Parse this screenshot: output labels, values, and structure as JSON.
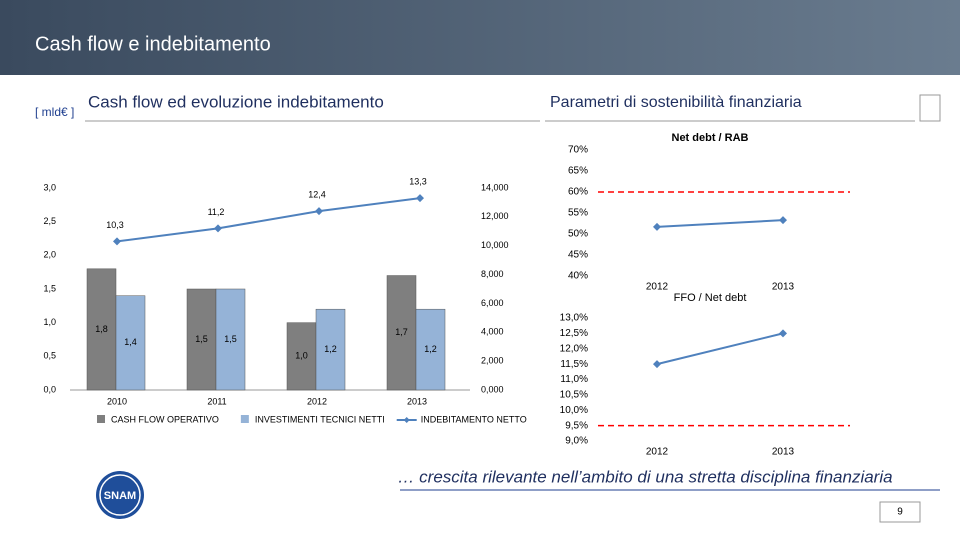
{
  "header": {
    "title": "Cash flow e indebitamento"
  },
  "footer": {
    "tagline": "… crescita rilevante nell’ambito di una stretta disciplina finanziaria",
    "logo": "SNAM",
    "page": "9"
  },
  "chart_data": [
    {
      "type": "bar",
      "unit": "[ mld€ ]",
      "title": "Cash flow ed evoluzione indebitamento",
      "categories": [
        "2010",
        "2011",
        "2012",
        "2013"
      ],
      "series": [
        {
          "name": "CASH FLOW OPERATIVO",
          "color": "#7f7f7f",
          "values": [
            1.8,
            1.5,
            1.0,
            1.7
          ],
          "value_labels": [
            "1,8",
            "1,5",
            "1,0",
            "1,7"
          ]
        },
        {
          "name": "INVESTIMENTI TECNICI NETTI",
          "color": "#95b3d7",
          "values": [
            1.4,
            1.5,
            1.2,
            1.2
          ],
          "value_labels": [
            "1,4",
            "1,5",
            "1,2",
            "1,2"
          ]
        },
        {
          "name": "INDEBITAMENTO NETTO",
          "type": "line",
          "axis": "y2",
          "color": "#4f81bd",
          "values": [
            10.3,
            11.2,
            12.4,
            13.3
          ],
          "value_labels": [
            "10,3",
            "11,2",
            "12,4",
            "13,3"
          ]
        }
      ],
      "ylim": [
        0,
        3
      ],
      "yticks": [
        {
          "value": 0,
          "label": "0,0"
        },
        {
          "value": 0.5,
          "label": "0,5"
        },
        {
          "value": 1,
          "label": "1,0"
        },
        {
          "value": 1.5,
          "label": "1,5"
        },
        {
          "value": 2,
          "label": "2,0"
        },
        {
          "value": 2.5,
          "label": "2,5"
        },
        {
          "value": 3,
          "label": "3,0"
        }
      ],
      "y2lim": [
        0,
        14
      ],
      "y2ticks": [
        {
          "value": 0,
          "label": "0,000"
        },
        {
          "value": 2,
          "label": "2,000"
        },
        {
          "value": 4,
          "label": "4,000"
        },
        {
          "value": 6,
          "label": "6,000"
        },
        {
          "value": 8,
          "label": "8,000"
        },
        {
          "value": 10,
          "label": "10,000"
        },
        {
          "value": 12,
          "label": "12,000"
        },
        {
          "value": 14,
          "label": "14,000"
        }
      ]
    },
    {
      "type": "line",
      "section_title": "Parametri di sostenibilità finanziaria",
      "title": "Net debt / RAB",
      "categories": [
        "2012",
        "2013"
      ],
      "values": [
        51.7,
        53.3
      ],
      "color": "#4f81bd",
      "threshold": 60,
      "threshold_color": "#ff0000",
      "ylim": [
        40,
        70
      ],
      "yticks": [
        {
          "value": 40,
          "label": "40%"
        },
        {
          "value": 45,
          "label": "45%"
        },
        {
          "value": 50,
          "label": "50%"
        },
        {
          "value": 55,
          "label": "55%"
        },
        {
          "value": 60,
          "label": "60%"
        },
        {
          "value": 65,
          "label": "65%"
        },
        {
          "value": 70,
          "label": "70%"
        }
      ]
    },
    {
      "type": "line",
      "title": "FFO / Net debt",
      "categories": [
        "2012",
        "2013"
      ],
      "values": [
        11.5,
        12.5
      ],
      "color": "#4f81bd",
      "threshold": 9.5,
      "threshold_color": "#ff0000",
      "ylim": [
        9,
        13
      ],
      "yticks": [
        {
          "value": 9,
          "label": "9,0%"
        },
        {
          "value": 9.5,
          "label": "9,5%"
        },
        {
          "value": 10,
          "label": "10,0%"
        },
        {
          "value": 10.5,
          "label": "10,5%"
        },
        {
          "value": 11,
          "label": "11,0%"
        },
        {
          "value": 11.5,
          "label": "11,5%"
        },
        {
          "value": 12,
          "label": "12,0%"
        },
        {
          "value": 12.5,
          "label": "12,5%"
        },
        {
          "value": 13,
          "label": "13,0%"
        }
      ]
    }
  ]
}
